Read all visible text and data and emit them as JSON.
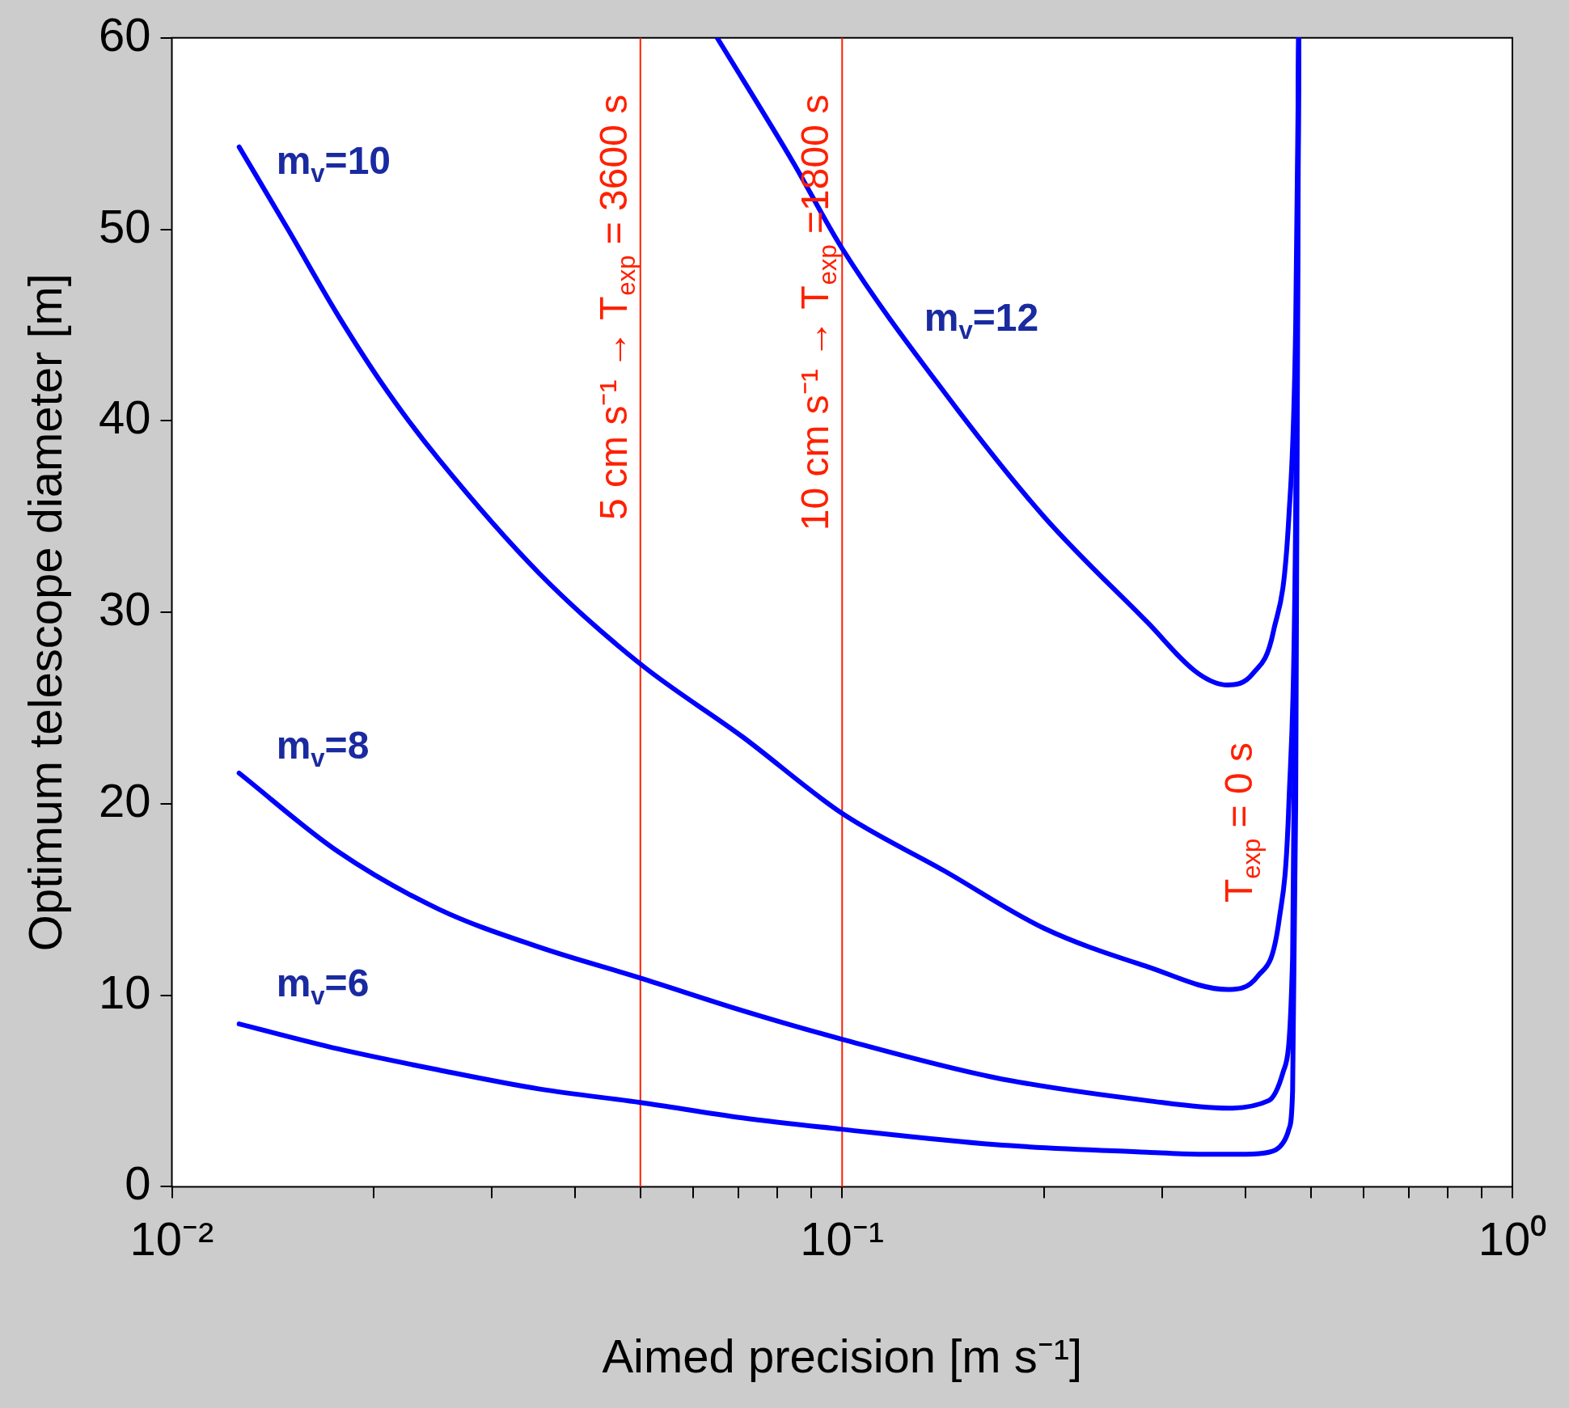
{
  "chart_data": {
    "type": "line",
    "xlabel": "Aimed precision [m s⁻¹]",
    "ylabel": "Optimum telescope diameter [m]",
    "log": "x",
    "grid": false,
    "legend": false,
    "marker": "none",
    "line_style": "solid",
    "xlim": [
      0.01,
      1
    ],
    "ylim": [
      0,
      60
    ],
    "xticks": [
      {
        "value": 0.01,
        "label": "10⁻²"
      },
      {
        "value": 0.02,
        "label": null
      },
      {
        "value": 0.03,
        "label": null
      },
      {
        "value": 0.04,
        "label": null
      },
      {
        "value": 0.05,
        "label": null
      },
      {
        "value": 0.06,
        "label": null
      },
      {
        "value": 0.07,
        "label": null
      },
      {
        "value": 0.08,
        "label": null
      },
      {
        "value": 0.09,
        "label": null
      },
      {
        "value": 0.1,
        "label": "10⁻¹"
      },
      {
        "value": 0.2,
        "label": null
      },
      {
        "value": 0.3,
        "label": null
      },
      {
        "value": 0.4,
        "label": null
      },
      {
        "value": 0.5,
        "label": null
      },
      {
        "value": 0.6,
        "label": null
      },
      {
        "value": 0.7,
        "label": null
      },
      {
        "value": 0.8,
        "label": null
      },
      {
        "value": 0.9,
        "label": null
      },
      {
        "value": 1,
        "label": "10⁰"
      }
    ],
    "yticks": [
      0,
      10,
      20,
      30,
      40,
      50,
      60
    ],
    "series": [
      {
        "name": "m$_{v}$=6",
        "color": "#0000ff",
        "x": [
          0.0126,
          0.0177,
          0.025,
          0.0354,
          0.05,
          0.071,
          0.1,
          0.169,
          0.285,
          0.34,
          0.4,
          0.433,
          0.455,
          0.464,
          0.47,
          0.475,
          0.48
        ],
        "values": [
          8.5,
          7.2,
          6.1,
          5.1,
          4.4,
          3.6,
          3.0,
          2.2,
          1.8,
          1.7,
          1.7,
          1.8,
          2.3,
          3,
          5,
          20,
          60
        ]
      },
      {
        "name": "m$_{v}$=8",
        "color": "#0000ff",
        "x": [
          0.0126,
          0.0177,
          0.025,
          0.0354,
          0.05,
          0.071,
          0.1,
          0.169,
          0.285,
          0.376,
          0.433,
          0.455,
          0.47,
          0.475,
          0.48
        ],
        "values": [
          21.6,
          17.5,
          14.5,
          12.5,
          10.9,
          9.2,
          7.7,
          5.7,
          4.5,
          4.1,
          4.5,
          6,
          12,
          30,
          60
        ]
      },
      {
        "name": "m$_{v}$=10",
        "color": "#0000ff",
        "x": [
          0.0126,
          0.0149,
          0.0177,
          0.021,
          0.025,
          0.0354,
          0.05,
          0.071,
          0.1,
          0.142,
          0.2,
          0.285,
          0.376,
          0.417,
          0.449,
          0.464,
          0.475,
          0.48
        ],
        "values": [
          54.3,
          50,
          45.5,
          41.5,
          38,
          32,
          27.3,
          23.5,
          19.5,
          16.5,
          13.5,
          11.5,
          10.3,
          11,
          14,
          20,
          35,
          60
        ]
      },
      {
        "name": "m$_{v}$=12",
        "color": "#0000ff",
        "x": [
          0.0651,
          0.0845,
          0.1,
          0.142,
          0.2,
          0.285,
          0.34,
          0.376,
          0.41,
          0.44,
          0.464,
          0.475,
          0.48
        ],
        "values": [
          60,
          53.5,
          49,
          41.5,
          35,
          29.5,
          26.8,
          26.2,
          26.8,
          29,
          35,
          45,
          60
        ]
      }
    ],
    "ref_lines": [
      {
        "axis": "x",
        "value": 0.05,
        "label": "5 cm s⁻¹ → T$_{exp}$ = 3600 s",
        "color": "#ff2000"
      },
      {
        "axis": "x",
        "value": 0.1,
        "label": "10 cm s⁻¹ → T$_{exp}$ =1800 s",
        "color": "#ff2000"
      }
    ],
    "annotations": [
      "T$_{exp}$ = 0 s"
    ]
  }
}
